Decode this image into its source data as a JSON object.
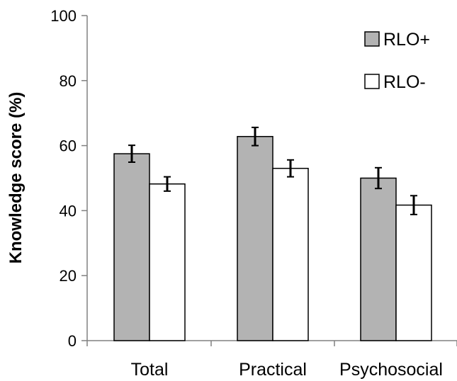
{
  "chart_data": {
    "type": "bar",
    "title": "",
    "xlabel": "",
    "ylabel": "Knowledge score (%)",
    "ylim": [
      0,
      100
    ],
    "yticks": [
      0,
      20,
      40,
      60,
      80,
      100
    ],
    "categories": [
      "Total",
      "Practical",
      "Psychosocial"
    ],
    "series": [
      {
        "name": "RLO+",
        "values": [
          57.5,
          62.8,
          50.0
        ],
        "errors": [
          2.6,
          2.8,
          3.2
        ],
        "color": "#b3b3b3"
      },
      {
        "name": "RLO-",
        "values": [
          48.2,
          53.0,
          41.7
        ],
        "errors": [
          2.2,
          2.6,
          2.9
        ],
        "color": "#ffffff"
      }
    ],
    "grid": false,
    "legend": "top-right"
  }
}
